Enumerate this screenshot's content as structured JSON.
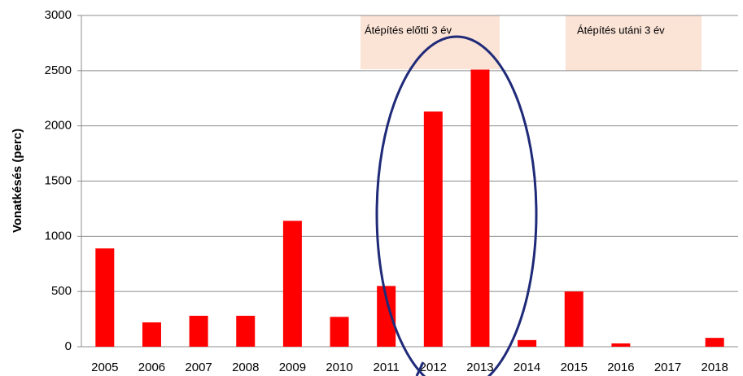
{
  "chart_data": {
    "type": "bar",
    "y_label": "Vonatkésés (perc)",
    "categories": [
      "2005",
      "2006",
      "2007",
      "2008",
      "2009",
      "2010",
      "2011",
      "2012",
      "2013",
      "2014",
      "2015",
      "2016",
      "2017",
      "2018"
    ],
    "values": [
      890,
      220,
      280,
      280,
      1140,
      270,
      550,
      2130,
      2510,
      60,
      500,
      30,
      0,
      80
    ],
    "color": "#ff0000",
    "ylim": [
      0,
      3000
    ],
    "yticks": [
      0,
      500,
      1000,
      1500,
      2000,
      2500,
      3000
    ],
    "grid": true,
    "annotations": [
      "Átépítés előtti 3 év",
      "Átépítés utáni 3 év"
    ]
  }
}
